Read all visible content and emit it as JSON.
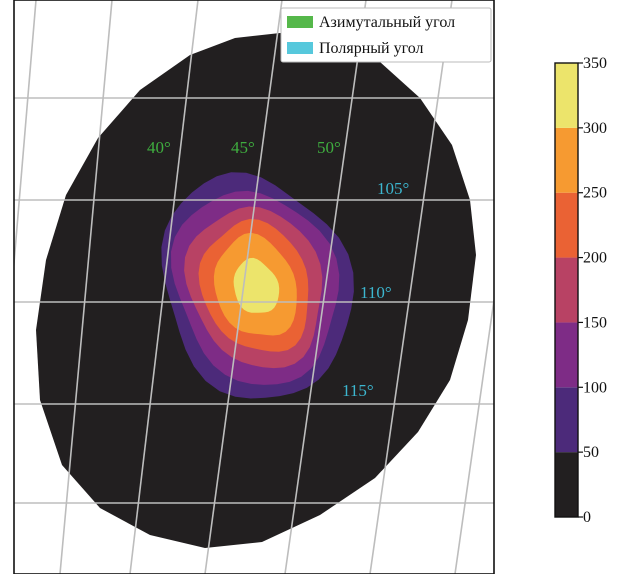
{
  "chart_data": {
    "type": "heatmap",
    "title": "",
    "xlabel": "",
    "ylabel": "",
    "legend": {
      "placement": "top-right",
      "entries": [
        {
          "label": "Азимутальный угол",
          "color": "#55b84a"
        },
        {
          "label": "Полярный угол",
          "color": "#56c8dc"
        }
      ]
    },
    "grid": true,
    "azimuth_labels": [
      "40°",
      "45°",
      "50°"
    ],
    "polar_labels": [
      "105°",
      "110°",
      "115°"
    ],
    "colorbar": {
      "ticks": [
        "0",
        "50",
        "100",
        "150",
        "200",
        "250",
        "300",
        "350"
      ],
      "range": [
        0,
        350
      ]
    },
    "levels": [
      {
        "from": 0,
        "to": 50,
        "color": "#221f20"
      },
      {
        "from": 50,
        "to": 100,
        "color": "#4c2a7a"
      },
      {
        "from": 100,
        "to": 150,
        "color": "#7e2c86"
      },
      {
        "from": 150,
        "to": 200,
        "color": "#b84264"
      },
      {
        "from": 200,
        "to": 250,
        "color": "#ea6234"
      },
      {
        "from": 250,
        "to": 300,
        "color": "#f69a31"
      },
      {
        "from": 300,
        "to": 350,
        "color": "#ece46b"
      }
    ],
    "peak_value": 350,
    "peak_location": {
      "azimuth_deg": 45,
      "polar_deg": 109
    }
  }
}
